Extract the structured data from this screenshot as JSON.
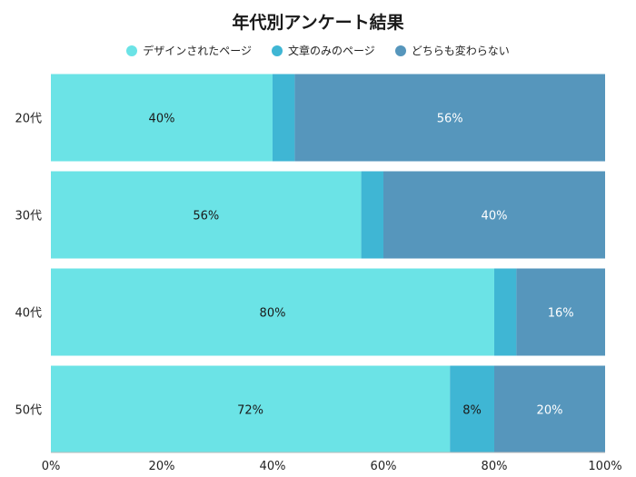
{
  "chart_data": {
    "type": "bar",
    "orientation": "horizontal",
    "stacked": true,
    "title": "年代別アンケート結果",
    "categories": [
      "20代",
      "30代",
      "40代",
      "50代"
    ],
    "series": [
      {
        "name": "デザインされたページ",
        "values": [
          40,
          56,
          80,
          72
        ],
        "labels": [
          "40%",
          "56%",
          "80%",
          "72%"
        ],
        "color": "#6be3e6"
      },
      {
        "name": "文章のみのページ",
        "values": [
          4,
          4,
          4,
          8
        ],
        "labels": [
          "",
          "",
          "",
          "8%"
        ],
        "color": "#3fb6d4"
      },
      {
        "name": "どちらも変わらない",
        "values": [
          56,
          40,
          16,
          20
        ],
        "labels": [
          "56%",
          "40%",
          "16%",
          "20%"
        ],
        "color": "#5696bc"
      }
    ],
    "xlim": [
      0,
      100
    ],
    "xticks": [
      "0%",
      "20%",
      "40%",
      "60%",
      "80%",
      "100%"
    ],
    "legend_position": "top"
  }
}
